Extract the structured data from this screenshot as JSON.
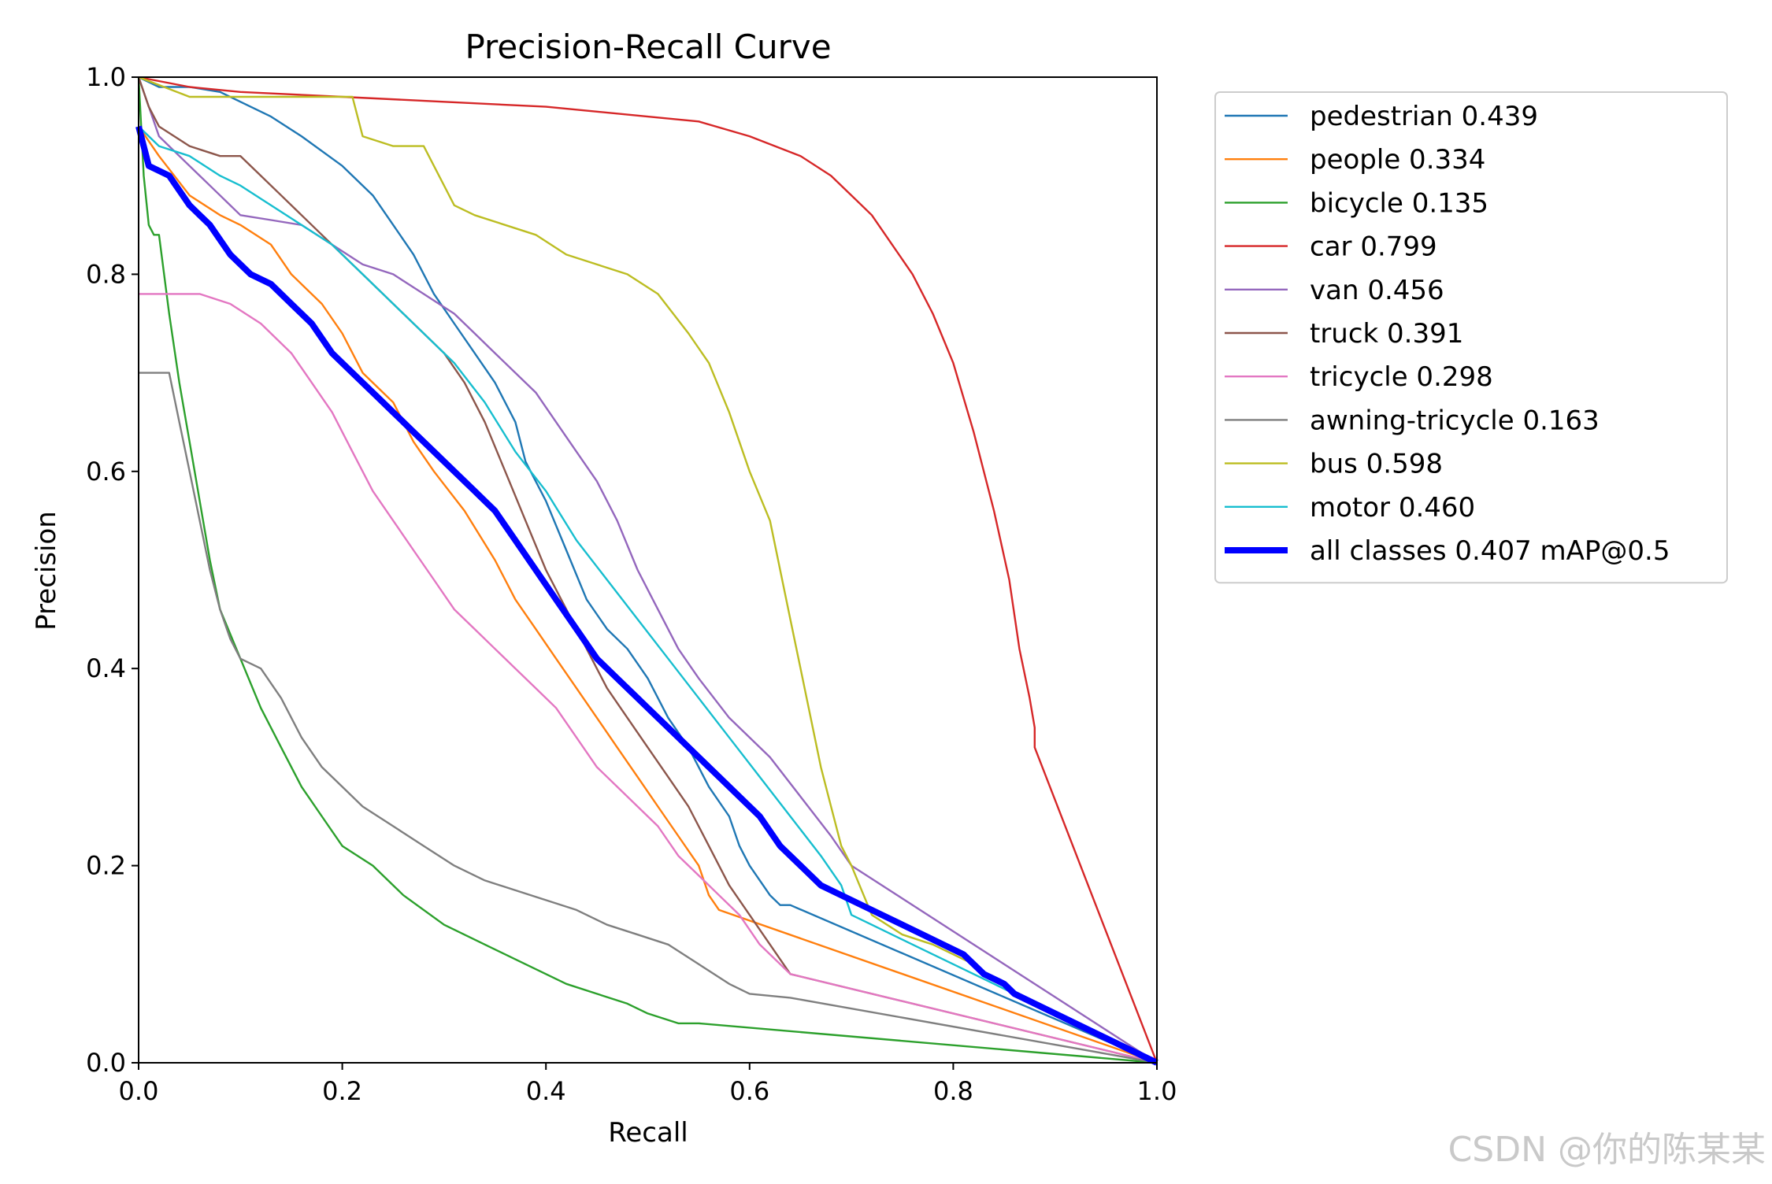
{
  "chart_data": {
    "type": "line",
    "title": "Precision-Recall Curve",
    "xlabel": "Recall",
    "ylabel": "Precision",
    "xlim": [
      0,
      1
    ],
    "ylim": [
      0,
      1
    ],
    "xticks": [
      "0.0",
      "0.2",
      "0.4",
      "0.6",
      "0.8",
      "1.0"
    ],
    "yticks": [
      "0.0",
      "0.2",
      "0.4",
      "0.6",
      "0.8",
      "1.0"
    ],
    "grid": false,
    "legend_position": "outside-right",
    "series": [
      {
        "name": "pedestrian 0.439",
        "color": "#1f77b4",
        "x": [
          0,
          0.02,
          0.05,
          0.08,
          0.1,
          0.13,
          0.16,
          0.2,
          0.23,
          0.25,
          0.27,
          0.29,
          0.31,
          0.33,
          0.35,
          0.37,
          0.38,
          0.4,
          0.42,
          0.44,
          0.46,
          0.48,
          0.5,
          0.52,
          0.54,
          0.56,
          0.58,
          0.59,
          0.6,
          0.62,
          0.63,
          0.64,
          1.0
        ],
        "y": [
          1.0,
          0.99,
          0.99,
          0.985,
          0.975,
          0.96,
          0.94,
          0.91,
          0.88,
          0.85,
          0.82,
          0.78,
          0.75,
          0.72,
          0.69,
          0.65,
          0.61,
          0.57,
          0.52,
          0.47,
          0.44,
          0.42,
          0.39,
          0.35,
          0.32,
          0.28,
          0.25,
          0.22,
          0.2,
          0.17,
          0.16,
          0.16,
          0.0
        ]
      },
      {
        "name": "people 0.334",
        "color": "#ff7f0e",
        "x": [
          0,
          0.02,
          0.05,
          0.08,
          0.1,
          0.13,
          0.15,
          0.18,
          0.2,
          0.22,
          0.25,
          0.27,
          0.29,
          0.32,
          0.35,
          0.37,
          0.39,
          0.41,
          0.43,
          0.45,
          0.47,
          0.49,
          0.51,
          0.53,
          0.55,
          0.56,
          0.57,
          1.0
        ],
        "y": [
          0.95,
          0.92,
          0.88,
          0.86,
          0.85,
          0.83,
          0.8,
          0.77,
          0.74,
          0.7,
          0.67,
          0.63,
          0.6,
          0.56,
          0.51,
          0.47,
          0.44,
          0.41,
          0.38,
          0.35,
          0.32,
          0.29,
          0.26,
          0.23,
          0.2,
          0.17,
          0.155,
          0.0
        ]
      },
      {
        "name": "bicycle 0.135",
        "color": "#2ca02c",
        "x": [
          0,
          0.005,
          0.01,
          0.015,
          0.02,
          0.03,
          0.04,
          0.05,
          0.06,
          0.07,
          0.08,
          0.1,
          0.12,
          0.14,
          0.16,
          0.18,
          0.2,
          0.23,
          0.26,
          0.3,
          0.34,
          0.38,
          0.42,
          0.45,
          0.48,
          0.5,
          0.53,
          0.55,
          1.0
        ],
        "y": [
          1.0,
          0.9,
          0.85,
          0.84,
          0.84,
          0.76,
          0.69,
          0.63,
          0.57,
          0.51,
          0.46,
          0.41,
          0.36,
          0.32,
          0.28,
          0.25,
          0.22,
          0.2,
          0.17,
          0.14,
          0.12,
          0.1,
          0.08,
          0.07,
          0.06,
          0.05,
          0.04,
          0.04,
          0.0
        ]
      },
      {
        "name": "car 0.799",
        "color": "#d62728",
        "x": [
          0,
          0.05,
          0.1,
          0.2,
          0.3,
          0.4,
          0.45,
          0.5,
          0.55,
          0.6,
          0.65,
          0.68,
          0.7,
          0.72,
          0.74,
          0.76,
          0.78,
          0.8,
          0.82,
          0.84,
          0.855,
          0.865,
          0.875,
          0.88,
          0.88,
          1.0
        ],
        "y": [
          1.0,
          0.99,
          0.985,
          0.98,
          0.975,
          0.97,
          0.965,
          0.96,
          0.955,
          0.94,
          0.92,
          0.9,
          0.88,
          0.86,
          0.83,
          0.8,
          0.76,
          0.71,
          0.64,
          0.56,
          0.49,
          0.42,
          0.37,
          0.34,
          0.32,
          0.0
        ]
      },
      {
        "name": "van 0.456",
        "color": "#9467bd",
        "x": [
          0,
          0.02,
          0.04,
          0.06,
          0.08,
          0.1,
          0.13,
          0.16,
          0.19,
          0.22,
          0.25,
          0.28,
          0.31,
          0.33,
          0.35,
          0.37,
          0.39,
          0.41,
          0.43,
          0.45,
          0.47,
          0.49,
          0.51,
          0.53,
          0.55,
          0.58,
          0.62,
          0.65,
          0.68,
          0.7,
          1.0
        ],
        "y": [
          1.0,
          0.94,
          0.92,
          0.9,
          0.88,
          0.86,
          0.855,
          0.85,
          0.83,
          0.81,
          0.8,
          0.78,
          0.76,
          0.74,
          0.72,
          0.7,
          0.68,
          0.65,
          0.62,
          0.59,
          0.55,
          0.5,
          0.46,
          0.42,
          0.39,
          0.35,
          0.31,
          0.27,
          0.23,
          0.2,
          0.0
        ]
      },
      {
        "name": "truck 0.391",
        "color": "#8c564b",
        "x": [
          0,
          0.01,
          0.02,
          0.05,
          0.08,
          0.1,
          0.12,
          0.14,
          0.16,
          0.18,
          0.2,
          0.22,
          0.24,
          0.26,
          0.28,
          0.3,
          0.32,
          0.34,
          0.36,
          0.38,
          0.4,
          0.42,
          0.44,
          0.46,
          0.48,
          0.5,
          0.52,
          0.54,
          0.56,
          0.58,
          0.6,
          0.62,
          0.64,
          1.0
        ],
        "y": [
          1.0,
          0.97,
          0.95,
          0.93,
          0.92,
          0.92,
          0.9,
          0.88,
          0.86,
          0.84,
          0.82,
          0.8,
          0.78,
          0.76,
          0.74,
          0.72,
          0.69,
          0.65,
          0.6,
          0.55,
          0.5,
          0.46,
          0.42,
          0.38,
          0.35,
          0.32,
          0.29,
          0.26,
          0.22,
          0.18,
          0.15,
          0.12,
          0.09,
          0.0
        ]
      },
      {
        "name": "tricycle 0.298",
        "color": "#e377c2",
        "x": [
          0,
          0.03,
          0.06,
          0.09,
          0.12,
          0.15,
          0.17,
          0.19,
          0.21,
          0.23,
          0.25,
          0.27,
          0.29,
          0.31,
          0.33,
          0.35,
          0.37,
          0.39,
          0.41,
          0.43,
          0.45,
          0.47,
          0.49,
          0.51,
          0.53,
          0.55,
          0.57,
          0.59,
          0.61,
          0.63,
          0.64,
          1.0
        ],
        "y": [
          0.78,
          0.78,
          0.78,
          0.77,
          0.75,
          0.72,
          0.69,
          0.66,
          0.62,
          0.58,
          0.55,
          0.52,
          0.49,
          0.46,
          0.44,
          0.42,
          0.4,
          0.38,
          0.36,
          0.33,
          0.3,
          0.28,
          0.26,
          0.24,
          0.21,
          0.19,
          0.17,
          0.15,
          0.12,
          0.1,
          0.09,
          0.0
        ]
      },
      {
        "name": "awning-tricycle 0.163",
        "color": "#7f7f7f",
        "x": [
          0,
          0.01,
          0.02,
          0.03,
          0.04,
          0.05,
          0.06,
          0.07,
          0.08,
          0.09,
          0.1,
          0.12,
          0.14,
          0.16,
          0.18,
          0.2,
          0.22,
          0.25,
          0.28,
          0.31,
          0.34,
          0.37,
          0.4,
          0.43,
          0.46,
          0.49,
          0.52,
          0.55,
          0.58,
          0.6,
          0.62,
          0.64,
          1.0
        ],
        "y": [
          0.7,
          0.7,
          0.7,
          0.7,
          0.65,
          0.6,
          0.55,
          0.5,
          0.46,
          0.43,
          0.41,
          0.4,
          0.37,
          0.33,
          0.3,
          0.28,
          0.26,
          0.24,
          0.22,
          0.2,
          0.185,
          0.175,
          0.165,
          0.155,
          0.14,
          0.13,
          0.12,
          0.1,
          0.08,
          0.07,
          0.068,
          0.066,
          0.0
        ]
      },
      {
        "name": "bus 0.598",
        "color": "#bcbd22",
        "x": [
          0,
          0.05,
          0.08,
          0.15,
          0.21,
          0.22,
          0.25,
          0.28,
          0.31,
          0.33,
          0.36,
          0.39,
          0.42,
          0.45,
          0.48,
          0.51,
          0.54,
          0.56,
          0.58,
          0.6,
          0.62,
          0.63,
          0.64,
          0.65,
          0.66,
          0.67,
          0.68,
          0.69,
          0.7,
          0.72,
          0.75,
          0.78,
          0.82,
          0.86,
          1.0
        ],
        "y": [
          1.0,
          0.98,
          0.98,
          0.98,
          0.98,
          0.94,
          0.93,
          0.93,
          0.87,
          0.86,
          0.85,
          0.84,
          0.82,
          0.81,
          0.8,
          0.78,
          0.74,
          0.71,
          0.66,
          0.6,
          0.55,
          0.5,
          0.45,
          0.4,
          0.35,
          0.3,
          0.26,
          0.22,
          0.2,
          0.15,
          0.13,
          0.12,
          0.1,
          0.07,
          0.0
        ]
      },
      {
        "name": "motor 0.460",
        "color": "#17becf",
        "x": [
          0,
          0.02,
          0.05,
          0.08,
          0.1,
          0.13,
          0.16,
          0.19,
          0.22,
          0.25,
          0.28,
          0.31,
          0.34,
          0.37,
          0.4,
          0.43,
          0.46,
          0.49,
          0.52,
          0.55,
          0.58,
          0.61,
          0.64,
          0.67,
          0.69,
          0.7,
          0.72,
          0.76,
          0.8,
          0.84,
          0.86,
          1.0
        ],
        "y": [
          0.95,
          0.93,
          0.92,
          0.9,
          0.89,
          0.87,
          0.85,
          0.83,
          0.8,
          0.77,
          0.74,
          0.71,
          0.67,
          0.62,
          0.58,
          0.53,
          0.49,
          0.45,
          0.41,
          0.37,
          0.33,
          0.29,
          0.25,
          0.21,
          0.18,
          0.15,
          0.14,
          0.12,
          0.1,
          0.08,
          0.07,
          0.0
        ]
      },
      {
        "name": "all classes 0.407 mAP@0.5",
        "color": "#0000ff",
        "x": [
          0,
          0.01,
          0.03,
          0.05,
          0.07,
          0.09,
          0.11,
          0.13,
          0.15,
          0.17,
          0.19,
          0.21,
          0.23,
          0.25,
          0.27,
          0.29,
          0.31,
          0.33,
          0.35,
          0.37,
          0.39,
          0.41,
          0.43,
          0.45,
          0.47,
          0.49,
          0.51,
          0.53,
          0.55,
          0.57,
          0.59,
          0.61,
          0.63,
          0.65,
          0.67,
          0.69,
          0.71,
          0.73,
          0.75,
          0.77,
          0.79,
          0.81,
          0.83,
          0.85,
          0.86,
          1.0
        ],
        "y": [
          0.95,
          0.91,
          0.9,
          0.87,
          0.85,
          0.82,
          0.8,
          0.79,
          0.77,
          0.75,
          0.72,
          0.7,
          0.68,
          0.66,
          0.64,
          0.62,
          0.6,
          0.58,
          0.56,
          0.53,
          0.5,
          0.47,
          0.44,
          0.41,
          0.39,
          0.37,
          0.35,
          0.33,
          0.31,
          0.29,
          0.27,
          0.25,
          0.22,
          0.2,
          0.18,
          0.17,
          0.16,
          0.15,
          0.14,
          0.13,
          0.12,
          0.11,
          0.09,
          0.08,
          0.07,
          0.0
        ]
      }
    ]
  },
  "watermark": "CSDN @你的陈某某"
}
